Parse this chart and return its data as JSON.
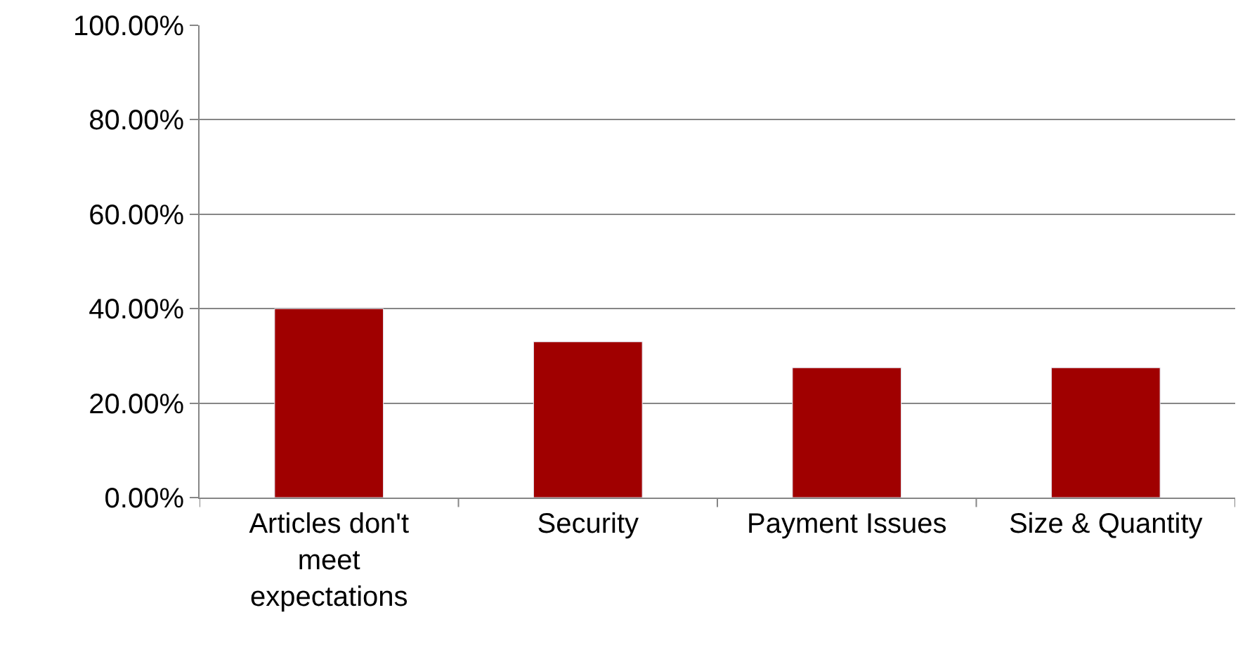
{
  "chart_data": {
    "type": "bar",
    "categories": [
      "Articles don't meet expectations",
      "Security",
      "Payment Issues",
      "Size & Quantity"
    ],
    "values": [
      40,
      33,
      27.5,
      27.5
    ],
    "color": "#a00000",
    "ylim": [
      0,
      100
    ],
    "yticks": [
      {
        "value": 0,
        "label": "0.00%"
      },
      {
        "value": 20,
        "label": "20.00%"
      },
      {
        "value": 40,
        "label": "40.00%"
      },
      {
        "value": 60,
        "label": "60.00%"
      },
      {
        "value": 80,
        "label": "80.00%"
      },
      {
        "value": 100,
        "label": "100.00%"
      }
    ],
    "grid": "y",
    "legend": false
  }
}
